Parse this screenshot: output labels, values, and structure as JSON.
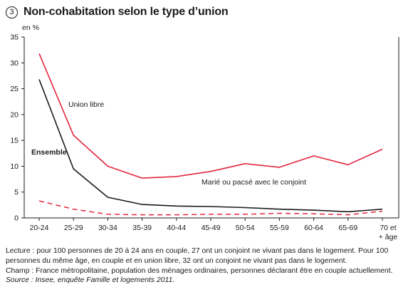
{
  "figure": {
    "number": "3",
    "title": "Non-cohabitation selon le type d’union"
  },
  "chart_data": {
    "type": "line",
    "title": "Non-cohabitation selon le type d’union",
    "ylabel": "en %",
    "xlabel": "",
    "ylim": [
      0,
      35
    ],
    "yticks": [
      0,
      5,
      10,
      15,
      20,
      25,
      30,
      35
    ],
    "grid": false,
    "categories": [
      "20-24",
      "25-29",
      "30-34",
      "35-39",
      "40-44",
      "45-49",
      "50-54",
      "55-59",
      "60-64",
      "65-69",
      "70 et + âge"
    ],
    "series": [
      {
        "name": "Union libre",
        "color": "#e3263f",
        "style": "solid",
        "values": [
          31.8,
          16.0,
          10.0,
          7.7,
          8.0,
          9.0,
          10.5,
          9.8,
          12.0,
          10.3,
          13.3
        ]
      },
      {
        "name": "Ensemble",
        "color": "#1a1a1a",
        "style": "solid",
        "values": [
          26.8,
          9.5,
          4.0,
          2.6,
          2.3,
          2.2,
          2.0,
          1.7,
          1.5,
          1.2,
          1.7
        ]
      },
      {
        "name": "Marié ou pacsé avec le conjoint",
        "color": "#e3263f",
        "style": "dashed",
        "values": [
          3.3,
          1.7,
          0.7,
          0.6,
          0.6,
          0.7,
          0.7,
          0.9,
          0.8,
          0.6,
          1.3
        ]
      }
    ]
  },
  "notes": {
    "lecture": "Lecture : pour 100 personnes de 20 à 24 ans en couple, 27 ont un conjoint ne vivant pas dans le logement. Pour 100 personnes du même âge, en couple et en union libre, 32 ont un conjoint ne vivant pas dans le logement.",
    "champ": "Champ : France métropolitaine, population des ménages ordinaires, personnes déclarant être en couple actuellement.",
    "source": "Source : Insee, enquête Famille et logements 2011."
  }
}
